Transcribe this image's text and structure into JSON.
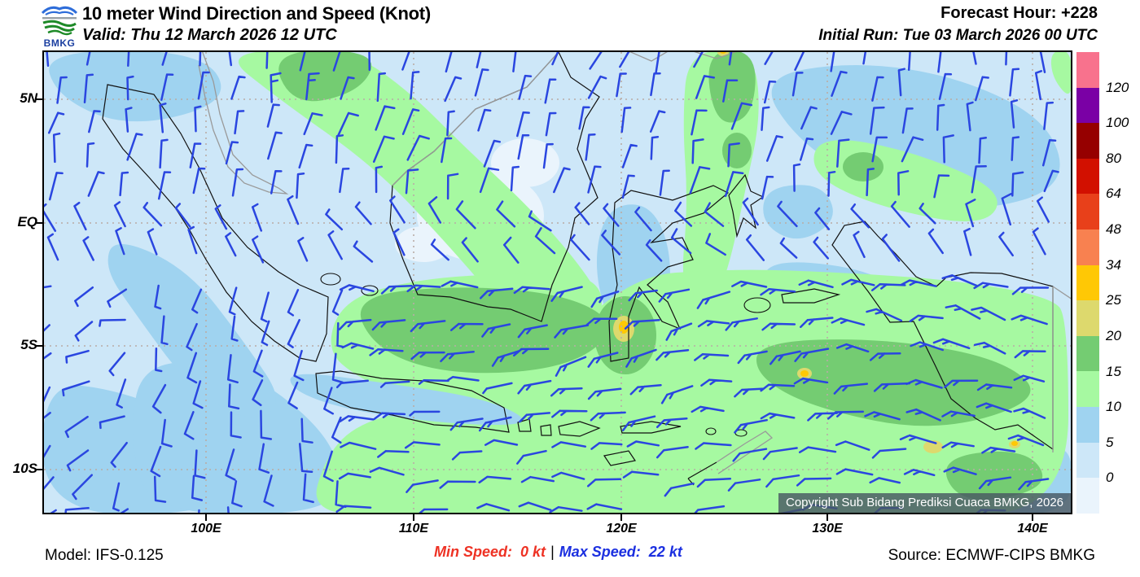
{
  "header": {
    "logo_text": "BMKG",
    "title": "10 meter Wind Direction and Speed (Knot)",
    "valid": "Valid: Thu 12 March 2026 12 UTC",
    "forecast_hour": "Forecast Hour: +228",
    "initial_run": "Initial Run: Tue 03 March 2026 00 UTC"
  },
  "map": {
    "lat_labels": [
      "5N",
      "EQ",
      "5S",
      "10S"
    ],
    "lon_labels": [
      "100E",
      "110E",
      "120E",
      "130E",
      "140E"
    ],
    "copyright": "Copyright Sub Bidang Prediksi Cuaca BMKG, 2026"
  },
  "legend": {
    "labels_top_to_bottom": [
      "120",
      "100",
      "80",
      "64",
      "48",
      "34",
      "25",
      "20",
      "15",
      "10",
      "5",
      "0"
    ],
    "colors_top_to_bottom": [
      "#F8728D",
      "#7A00A5",
      "#960000",
      "#D21000",
      "#E8401A",
      "#F88150",
      "#FFC805",
      "#DDD96D",
      "#74CC72",
      "#A6F9A1",
      "#9FD3F0",
      "#CDE7F8",
      "#EAF4FC"
    ]
  },
  "footer": {
    "model": "Model: IFS-0.125",
    "min_speed_label": "Min Speed:",
    "min_speed_value": "0 kt",
    "separator": "|",
    "max_speed_label": "Max Speed:",
    "max_speed_value": "22 kt",
    "source": "Source: ECMWF-CIPS BMKG"
  },
  "colors": {
    "barb": "#2A46E0",
    "coast_indonesia": "#111111",
    "coast_foreign": "#9a9a9a",
    "gridline": "#b9aca6",
    "min_speed_text": "#EE3224",
    "max_speed_text": "#1B2FE0"
  }
}
